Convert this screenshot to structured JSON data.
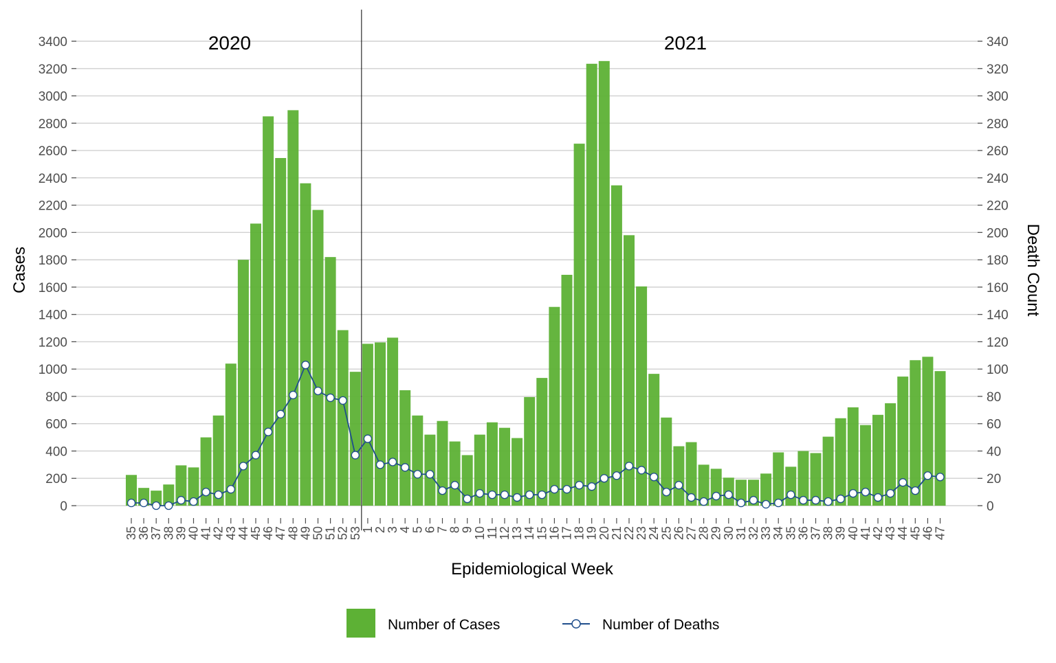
{
  "chart_data": {
    "type": "bar",
    "xlabel": "Epidemiological Week",
    "ylabel": "Cases",
    "ylabel_right": "Death Count",
    "ylim": [
      0,
      3400
    ],
    "ylim_right": [
      0,
      340
    ],
    "yticks": [
      0,
      200,
      400,
      600,
      800,
      1000,
      1200,
      1400,
      1600,
      1800,
      2000,
      2200,
      2400,
      2600,
      2800,
      3000,
      3200,
      3400
    ],
    "yticks_right": [
      0,
      20,
      40,
      60,
      80,
      100,
      120,
      140,
      160,
      180,
      200,
      220,
      240,
      260,
      280,
      300,
      320,
      340
    ],
    "grid": true,
    "legend_position": "bottom",
    "year_labels": [
      {
        "text": "2020",
        "at_week_index": 8.5
      },
      {
        "text": "2021",
        "at_week_index": 44.5
      }
    ],
    "year_divider_after_index": 18,
    "categories": [
      "35",
      "36",
      "37",
      "38",
      "39",
      "40",
      "41",
      "42",
      "43",
      "44",
      "45",
      "46",
      "47",
      "48",
      "49",
      "50",
      "51",
      "52",
      "53",
      "1",
      "2",
      "3",
      "4",
      "5",
      "6",
      "7",
      "8",
      "9",
      "10",
      "11",
      "12",
      "13",
      "14",
      "15",
      "16",
      "17",
      "18",
      "19",
      "20",
      "21",
      "22",
      "23",
      "24",
      "25",
      "26",
      "27",
      "28",
      "29",
      "30",
      "31",
      "32",
      "33",
      "34",
      "35",
      "36",
      "37",
      "38",
      "39",
      "40",
      "41",
      "42",
      "43",
      "44",
      "45",
      "46",
      "47"
    ],
    "series": [
      {
        "name": "Number of Cases",
        "type": "bar",
        "color": "#5db135",
        "values": [
          225,
          130,
          110,
          155,
          295,
          280,
          500,
          660,
          1040,
          1800,
          2065,
          2850,
          2545,
          2895,
          2360,
          2165,
          1820,
          1285,
          980,
          1185,
          1195,
          1230,
          845,
          660,
          520,
          620,
          470,
          370,
          520,
          610,
          570,
          495,
          795,
          935,
          1455,
          1690,
          2650,
          3235,
          3255,
          2345,
          1980,
          1605,
          965,
          645,
          435,
          465,
          300,
          270,
          205,
          190,
          190,
          235,
          390,
          285,
          400,
          385,
          505,
          640,
          720,
          590,
          665,
          750,
          945,
          1065,
          1090,
          985
        ]
      },
      {
        "name": "Number of Deaths",
        "type": "line",
        "axis": "right",
        "color": "#1f4e8c",
        "values": [
          2,
          2,
          0,
          0,
          4,
          3,
          10,
          8,
          12,
          29,
          37,
          54,
          67,
          81,
          103,
          84,
          79,
          77,
          37,
          49,
          30,
          32,
          28,
          23,
          23,
          11,
          15,
          5,
          9,
          8,
          8,
          6,
          8,
          8,
          12,
          12,
          15,
          14,
          20,
          22,
          29,
          26,
          21,
          10,
          15,
          6,
          3,
          7,
          8,
          2,
          4,
          1,
          2,
          8,
          4,
          4,
          3,
          5,
          9,
          10,
          6,
          9,
          17,
          11,
          22,
          21
        ]
      }
    ],
    "legend": {
      "cases_label": "Number of Cases",
      "deaths_label": "Number of Deaths"
    }
  }
}
